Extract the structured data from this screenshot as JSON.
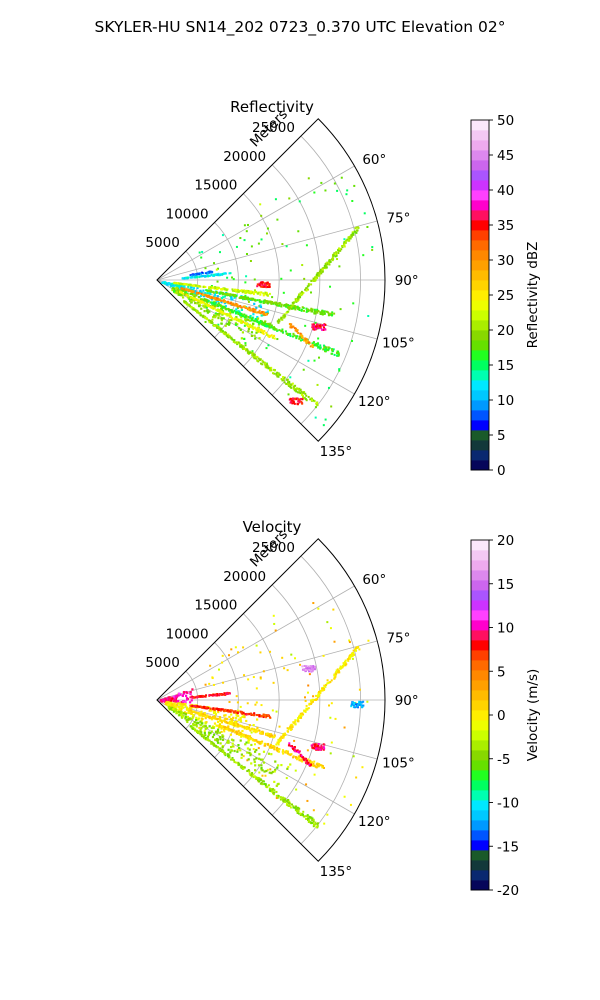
{
  "figure_title": "SKYLER-HU  SN14_202  0723_0.370 UTC Elevation 02°",
  "chart_data": [
    {
      "type": "heatmap",
      "title": "Reflectivity",
      "radial_label": "Meters",
      "theta_range_deg": [
        45,
        135
      ],
      "r_max": 28000,
      "r_ticks": [
        5000,
        10000,
        15000,
        20000,
        25000
      ],
      "theta_ticks_deg": [
        60,
        75,
        90,
        105,
        120,
        135
      ],
      "theta_tick_labels": [
        "60°",
        "75°",
        "90°",
        "105°",
        "120°",
        "135°"
      ],
      "grid": true,
      "colorbar": {
        "label": "Reflectivity dBZ",
        "range": [
          0,
          50
        ],
        "ticks": [
          0,
          5,
          10,
          15,
          20,
          25,
          30,
          35,
          40,
          45,
          50
        ],
        "colors": [
          "#06065a",
          "#0a2870",
          "#12383a",
          "#1a5a2a",
          "#0000ff",
          "#0055ff",
          "#0099ff",
          "#00c8ff",
          "#00e8ff",
          "#00ffb0",
          "#00ff60",
          "#22ff20",
          "#66e000",
          "#88d800",
          "#aaee00",
          "#ccff00",
          "#eeff00",
          "#ffee00",
          "#ffd400",
          "#ffbb00",
          "#ffa000",
          "#ff8800",
          "#ff6a00",
          "#ff4000",
          "#ff0000",
          "#ff1060",
          "#ff00cc",
          "#ff40ff",
          "#cc33ff",
          "#aa55ff",
          "#cc66ee",
          "#dd88ee",
          "#eeaaee",
          "#f4c8f4",
          "#fbe8fb"
        ]
      },
      "features": [
        {
          "kind": "wedge",
          "theta": [
            100,
            112
          ],
          "r": [
            500,
            14000
          ],
          "value": 12
        },
        {
          "kind": "wedge",
          "theta": [
            110,
            125
          ],
          "r": [
            2000,
            15000
          ],
          "value": 19
        },
        {
          "kind": "ray",
          "theta": 116,
          "r": [
            3000,
            16000
          ],
          "value": 24
        },
        {
          "kind": "ray",
          "theta": 107,
          "r": [
            3000,
            14000
          ],
          "value": 30
        },
        {
          "kind": "ray",
          "theta": 97,
          "r": [
            2000,
            14000
          ],
          "value": 22
        },
        {
          "kind": "ray",
          "theta": 101,
          "r": [
            6000,
            22000
          ],
          "value": 18
        },
        {
          "kind": "ray",
          "theta": 112,
          "r": [
            6000,
            24000
          ],
          "value": 17
        },
        {
          "kind": "ray",
          "theta": 128,
          "r": [
            4000,
            25000
          ],
          "value": 20
        },
        {
          "kind": "ray",
          "theta": 84,
          "r": [
            3000,
            9000
          ],
          "value": 12
        },
        {
          "kind": "ray",
          "theta": 80,
          "r": [
            4000,
            7000
          ],
          "value": 8
        },
        {
          "kind": "line",
          "from": [
            75,
            25500
          ],
          "to": [
            110,
            15500
          ],
          "value": 20
        },
        {
          "kind": "line",
          "from": [
            108,
            17000
          ],
          "to": [
            113,
            20500
          ],
          "value": 30
        },
        {
          "kind": "spot",
          "theta": 106,
          "r": 20500,
          "value": 36
        },
        {
          "kind": "spot",
          "theta": 131,
          "r": 22500,
          "value": 35
        },
        {
          "kind": "spot",
          "theta": 92,
          "r": 13000,
          "value": 35
        }
      ]
    },
    {
      "type": "heatmap",
      "title": "Velocity",
      "radial_label": "Meters",
      "theta_range_deg": [
        45,
        135
      ],
      "r_max": 28000,
      "r_ticks": [
        5000,
        10000,
        15000,
        20000,
        25000
      ],
      "theta_ticks_deg": [
        60,
        75,
        90,
        105,
        120,
        135
      ],
      "theta_tick_labels": [
        "60°",
        "75°",
        "90°",
        "105°",
        "120°",
        "135°"
      ],
      "grid": true,
      "colorbar": {
        "label": "Velocity (m/s)",
        "range": [
          -20,
          20
        ],
        "ticks": [
          -20,
          -15,
          -10,
          -5,
          0,
          5,
          10,
          15,
          20
        ],
        "colors": [
          "#06065a",
          "#0a2870",
          "#12383a",
          "#1a5a2a",
          "#0000ff",
          "#0055ff",
          "#0099ff",
          "#00c8ff",
          "#00e8ff",
          "#00ffb0",
          "#00ff60",
          "#22ff20",
          "#66e000",
          "#88d800",
          "#aaee00",
          "#ccff00",
          "#eeff00",
          "#ffee00",
          "#ffd400",
          "#ffbb00",
          "#ffa000",
          "#ff8800",
          "#ff6a00",
          "#ff4000",
          "#ff0000",
          "#ff1060",
          "#ff00cc",
          "#ff40ff",
          "#cc33ff",
          "#aa55ff",
          "#cc66ee",
          "#dd88ee",
          "#eeaaee",
          "#f4c8f4",
          "#fbe8fb"
        ]
      },
      "features": [
        {
          "kind": "wedge",
          "theta": [
            70,
            96
          ],
          "r": [
            300,
            4500
          ],
          "value": 10
        },
        {
          "kind": "wedge",
          "theta": [
            96,
            115
          ],
          "r": [
            1000,
            13000
          ],
          "value": 0
        },
        {
          "kind": "wedge",
          "theta": [
            115,
            126
          ],
          "r": [
            1500,
            18000
          ],
          "value": -4
        },
        {
          "kind": "ray",
          "theta": 98,
          "r": [
            4000,
            14000
          ],
          "value": 7
        },
        {
          "kind": "ray",
          "theta": 84,
          "r": [
            4000,
            9000
          ],
          "value": 8
        },
        {
          "kind": "ray",
          "theta": 107,
          "r": [
            4000,
            15000
          ],
          "value": 1
        },
        {
          "kind": "ray",
          "theta": 128,
          "r": [
            5000,
            25000
          ],
          "value": -4
        },
        {
          "kind": "ray",
          "theta": 112,
          "r": [
            8000,
            22000
          ],
          "value": 1
        },
        {
          "kind": "line",
          "from": [
            75,
            25500
          ],
          "to": [
            110,
            15500
          ],
          "value": 0
        },
        {
          "kind": "line",
          "from": [
            108,
            17000
          ],
          "to": [
            113,
            20500
          ],
          "value": 9
        },
        {
          "kind": "spot",
          "theta": 78,
          "r": 19000,
          "value": 16
        },
        {
          "kind": "spot",
          "theta": 91,
          "r": 24500,
          "value": -12
        },
        {
          "kind": "spot",
          "theta": 106,
          "r": 20500,
          "value": 9
        }
      ]
    }
  ]
}
